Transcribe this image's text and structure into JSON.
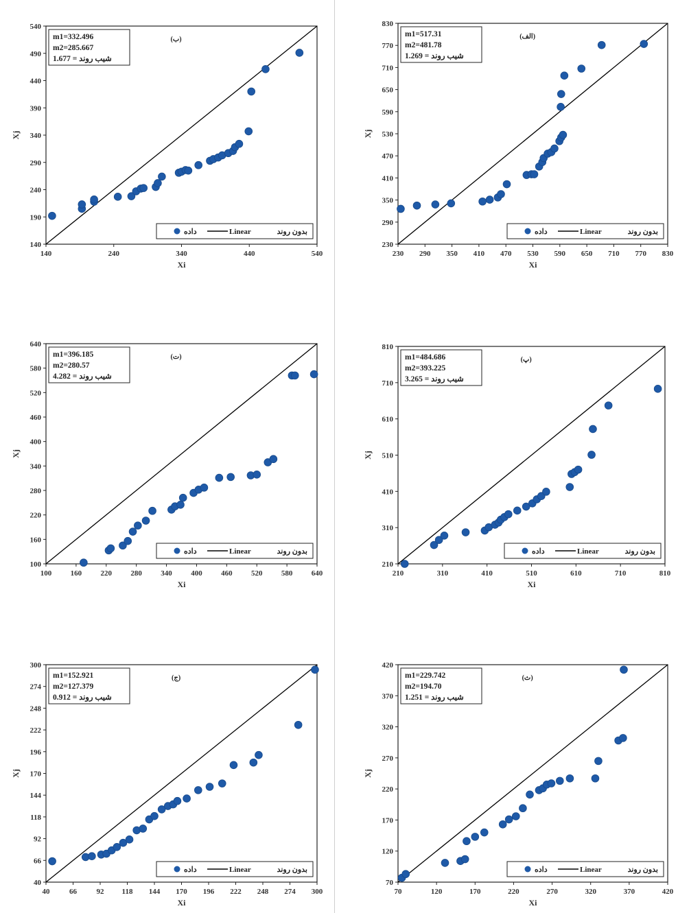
{
  "figure": {
    "colors": {
      "point": "#1f5aa8",
      "point_edge": "#174a8c",
      "line": "#000000",
      "frame": "#222222",
      "divider": "#cfcfcf"
    }
  },
  "chart_data": [
    {
      "type": "scatter",
      "panel": "ب",
      "xlabel": "Xi",
      "ylabel": "Xj",
      "xlim": [
        140,
        540
      ],
      "ylim": [
        140,
        540
      ],
      "ticks": [
        140,
        240,
        340,
        440,
        540
      ],
      "yticks": [
        140,
        190,
        240,
        290,
        340,
        390,
        440,
        490,
        540
      ],
      "stats": [
        "m1=332.496",
        "m2=285.667",
        "شیب روند = 1.677"
      ],
      "legend": {
        "points": "داده",
        "line": "Linear",
        "extra": "بدون روند"
      },
      "points": [
        [
          149,
          192
        ],
        [
          193,
          205
        ],
        [
          193,
          213
        ],
        [
          211,
          218
        ],
        [
          211,
          222
        ],
        [
          246,
          227
        ],
        [
          266,
          228
        ],
        [
          273,
          237
        ],
        [
          280,
          242
        ],
        [
          284,
          243
        ],
        [
          302,
          245
        ],
        [
          305,
          252
        ],
        [
          311,
          264
        ],
        [
          336,
          271
        ],
        [
          340,
          273
        ],
        [
          346,
          276
        ],
        [
          350,
          275
        ],
        [
          365,
          285
        ],
        [
          382,
          293
        ],
        [
          387,
          296
        ],
        [
          394,
          299
        ],
        [
          400,
          303
        ],
        [
          409,
          307
        ],
        [
          416,
          311
        ],
        [
          419,
          318
        ],
        [
          425,
          324
        ],
        [
          439,
          347
        ],
        [
          443,
          420
        ],
        [
          464,
          461
        ],
        [
          514,
          491
        ]
      ]
    },
    {
      "type": "scatter",
      "panel": "الف",
      "xlabel": "Xi",
      "ylabel": "Xj",
      "xlim": [
        230,
        830
      ],
      "ylim": [
        230,
        830
      ],
      "ticks": [
        230,
        290,
        350,
        410,
        470,
        530,
        590,
        650,
        710,
        770,
        830
      ],
      "yticks": [
        230,
        290,
        350,
        410,
        470,
        530,
        590,
        650,
        710,
        770,
        830
      ],
      "stats": [
        "m1=517.31",
        "m2=481.78",
        "شیب روند = 1.269"
      ],
      "legend": {
        "points": "داده",
        "line": "Linear",
        "extra": "بدون روند"
      },
      "points": [
        [
          236,
          326
        ],
        [
          272,
          335
        ],
        [
          313,
          338
        ],
        [
          348,
          341
        ],
        [
          418,
          346
        ],
        [
          434,
          351
        ],
        [
          452,
          357
        ],
        [
          459,
          366
        ],
        [
          472,
          393
        ],
        [
          516,
          418
        ],
        [
          527,
          420
        ],
        [
          533,
          420
        ],
        [
          544,
          441
        ],
        [
          551,
          453
        ],
        [
          554,
          464
        ],
        [
          563,
          476
        ],
        [
          571,
          480
        ],
        [
          578,
          490
        ],
        [
          589,
          510
        ],
        [
          593,
          520
        ],
        [
          597,
          527
        ],
        [
          592,
          603
        ],
        [
          593,
          638
        ],
        [
          600,
          688
        ],
        [
          638,
          707
        ],
        [
          683,
          771
        ],
        [
          777,
          774
        ]
      ]
    },
    {
      "type": "scatter",
      "panel": "ت",
      "xlabel": "Xi",
      "ylabel": "Xj",
      "xlim": [
        100,
        640
      ],
      "ylim": [
        100,
        640
      ],
      "ticks": [
        100,
        160,
        220,
        280,
        340,
        400,
        460,
        520,
        580,
        640
      ],
      "yticks": [
        100,
        160,
        220,
        280,
        340,
        400,
        460,
        520,
        580,
        640
      ],
      "stats": [
        "m1=396.185",
        "m2=280.57",
        "شیب روند = 4.282"
      ],
      "legend": {
        "points": "داده",
        "line": "Linear",
        "extra": "بدون روند"
      },
      "points": [
        [
          175,
          103
        ],
        [
          225,
          133
        ],
        [
          229,
          138
        ],
        [
          253,
          145
        ],
        [
          263,
          156
        ],
        [
          273,
          179
        ],
        [
          283,
          194
        ],
        [
          299,
          206
        ],
        [
          312,
          230
        ],
        [
          350,
          233
        ],
        [
          357,
          241
        ],
        [
          368,
          245
        ],
        [
          373,
          262
        ],
        [
          394,
          274
        ],
        [
          404,
          282
        ],
        [
          415,
          287
        ],
        [
          445,
          311
        ],
        [
          468,
          313
        ],
        [
          508,
          317
        ],
        [
          520,
          319
        ],
        [
          542,
          349
        ],
        [
          553,
          357
        ],
        [
          590,
          562
        ],
        [
          596,
          562
        ],
        [
          634,
          565
        ]
      ]
    },
    {
      "type": "scatter",
      "panel": "پ",
      "xlabel": "Xi",
      "ylabel": "Xj",
      "xlim": [
        210,
        810
      ],
      "ylim": [
        210,
        810
      ],
      "ticks": [
        210,
        310,
        410,
        510,
        610,
        710,
        810
      ],
      "yticks": [
        210,
        310,
        410,
        510,
        610,
        710,
        810
      ],
      "stats": [
        "m1=484.686",
        "m2=393.225",
        "شیب روند = 3.265"
      ],
      "legend": {
        "points": "داده",
        "line": "Linear",
        "extra": "بدون روند"
      },
      "points": [
        [
          225,
          210
        ],
        [
          291,
          262
        ],
        [
          302,
          276
        ],
        [
          314,
          288
        ],
        [
          362,
          297
        ],
        [
          405,
          302
        ],
        [
          414,
          311
        ],
        [
          428,
          318
        ],
        [
          436,
          324
        ],
        [
          441,
          332
        ],
        [
          449,
          339
        ],
        [
          458,
          347
        ],
        [
          478,
          357
        ],
        [
          498,
          368
        ],
        [
          512,
          377
        ],
        [
          522,
          388
        ],
        [
          532,
          397
        ],
        [
          543,
          409
        ],
        [
          596,
          422
        ],
        [
          600,
          458
        ],
        [
          607,
          463
        ],
        [
          615,
          470
        ],
        [
          645,
          511
        ],
        [
          648,
          582
        ],
        [
          683,
          647
        ],
        [
          794,
          693
        ]
      ]
    },
    {
      "type": "scatter",
      "panel": "ج",
      "xlabel": "Xi",
      "ylabel": "Xj",
      "xlim": [
        40,
        300
      ],
      "ylim": [
        40,
        300
      ],
      "ticks": [
        40,
        66,
        92,
        118,
        144,
        170,
        196,
        222,
        248,
        274,
        300
      ],
      "yticks": [
        40,
        66,
        92,
        118,
        144,
        170,
        196,
        222,
        248,
        274,
        300
      ],
      "stats": [
        "m1=152.921",
        "m2=127.379",
        "شیب روند = 0.912"
      ],
      "legend": {
        "points": "داده",
        "line": "Linear",
        "extra": "بدون روند"
      },
      "points": [
        [
          46,
          65
        ],
        [
          78,
          70
        ],
        [
          84,
          71
        ],
        [
          93,
          73
        ],
        [
          98,
          74
        ],
        [
          103,
          78
        ],
        [
          108,
          82
        ],
        [
          114,
          87
        ],
        [
          120,
          91
        ],
        [
          127,
          102
        ],
        [
          133,
          104
        ],
        [
          139,
          115
        ],
        [
          144,
          119
        ],
        [
          151,
          127
        ],
        [
          157,
          131
        ],
        [
          162,
          133
        ],
        [
          166,
          137
        ],
        [
          175,
          140
        ],
        [
          186,
          150
        ],
        [
          197,
          154
        ],
        [
          209,
          158
        ],
        [
          220,
          180
        ],
        [
          239,
          183
        ],
        [
          244,
          192
        ],
        [
          282,
          228
        ],
        [
          298,
          294
        ]
      ]
    },
    {
      "type": "scatter",
      "panel": "ث",
      "xlabel": "Xi",
      "ylabel": "Xj",
      "xlim": [
        70,
        420
      ],
      "ylim": [
        70,
        420
      ],
      "ticks": [
        70,
        120,
        170,
        220,
        270,
        320,
        370,
        420
      ],
      "yticks": [
        70,
        120,
        170,
        220,
        270,
        320,
        370,
        420
      ],
      "stats": [
        "m1=229.742",
        "m2=194.70",
        "شیب روند = 1.251"
      ],
      "legend": {
        "points": "داده",
        "line": "Linear",
        "extra": "بدون روند"
      },
      "points": [
        [
          75,
          77
        ],
        [
          80,
          83
        ],
        [
          131,
          101
        ],
        [
          151,
          104
        ],
        [
          157,
          107
        ],
        [
          159,
          136
        ],
        [
          170,
          143
        ],
        [
          182,
          150
        ],
        [
          206,
          163
        ],
        [
          214,
          171
        ],
        [
          223,
          176
        ],
        [
          232,
          189
        ],
        [
          241,
          211
        ],
        [
          253,
          218
        ],
        [
          258,
          221
        ],
        [
          263,
          227
        ],
        [
          269,
          229
        ],
        [
          280,
          233
        ],
        [
          293,
          237
        ],
        [
          326,
          237
        ],
        [
          330,
          265
        ],
        [
          356,
          298
        ],
        [
          362,
          302
        ],
        [
          363,
          412
        ]
      ]
    }
  ]
}
